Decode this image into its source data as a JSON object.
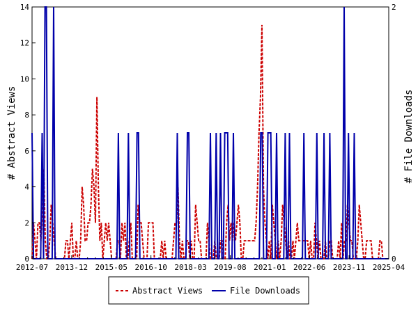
{
  "chart_data": {
    "type": "line",
    "title": "",
    "ylabel_left": "# Abstract Views",
    "ylabel_right": "# File Downloads",
    "ylim_left": [
      0,
      14
    ],
    "ylim_right": [
      0,
      2
    ],
    "y_ticks_left": [
      "0",
      "2",
      "4",
      "6",
      "8",
      "10",
      "12",
      "14"
    ],
    "y_ticks_right": [
      "0",
      "2"
    ],
    "x_tick_labels": [
      "2012-07",
      "2013-12",
      "2015-05",
      "2016-10",
      "2018-03",
      "2019-08",
      "2021-01",
      "2022-06",
      "2023-11",
      "2025-04"
    ],
    "grid": false,
    "legend_position": "bottom-center",
    "colors": {
      "abstract_views": "#cc0000",
      "file_downloads": "#0000aa"
    },
    "series": [
      {
        "name": "Abstract Views",
        "axis": "left",
        "style": "dashed",
        "color": "#cc0000",
        "values": [
          0,
          2,
          1,
          0,
          2,
          2,
          1,
          3,
          5,
          1,
          0,
          0,
          1,
          3,
          2,
          1,
          0,
          0,
          0,
          0,
          0,
          0,
          0,
          1,
          1,
          0,
          1,
          2,
          0,
          0,
          1,
          0,
          0,
          1,
          4,
          3,
          1,
          1,
          2,
          2,
          3,
          5,
          4,
          2,
          9,
          4,
          1,
          2,
          0,
          1,
          2,
          1,
          2,
          1,
          0,
          0,
          0,
          0,
          1,
          1,
          0,
          2,
          1,
          2,
          0,
          0,
          1,
          2,
          0,
          0,
          0,
          0,
          3,
          2,
          2,
          1,
          0,
          0,
          0,
          2,
          2,
          2,
          2,
          0,
          0,
          0,
          0,
          0,
          1,
          0,
          1,
          0,
          0,
          0,
          0,
          0,
          1,
          2,
          2,
          4,
          1,
          0,
          1,
          0,
          0,
          1,
          1,
          0,
          1,
          0,
          0,
          3,
          2,
          1,
          1,
          0,
          0,
          0,
          0,
          2,
          1,
          0,
          0,
          0,
          1,
          0,
          0,
          0,
          1,
          1,
          0,
          0,
          2,
          3,
          1,
          2,
          1,
          2,
          1,
          2,
          3,
          2,
          0,
          0,
          1,
          1,
          1,
          1,
          1,
          1,
          1,
          1,
          2,
          4,
          7,
          9,
          13,
          4,
          2,
          1,
          0,
          1,
          0,
          3,
          2,
          1,
          0,
          1,
          0,
          1,
          3,
          2,
          1,
          0,
          1,
          0,
          0,
          1,
          0,
          1,
          2,
          1,
          1,
          1,
          1,
          1,
          1,
          1,
          0,
          1,
          0,
          0,
          2,
          1,
          0,
          1,
          0,
          0,
          0,
          1,
          0,
          0,
          1,
          1,
          0,
          0,
          0,
          0,
          1,
          0,
          2,
          0,
          1,
          1,
          3,
          2,
          1,
          1,
          0,
          0,
          0,
          1,
          3,
          2,
          1,
          0,
          0,
          1,
          1,
          1,
          1,
          0,
          0,
          0,
          0,
          0,
          1,
          1,
          0,
          0,
          0,
          0,
          0
        ]
      },
      {
        "name": "File Downloads",
        "axis": "right",
        "style": "solid",
        "color": "#0000aa",
        "values": [
          1,
          0,
          0,
          0,
          0,
          0,
          0,
          1,
          0,
          2,
          2,
          0,
          0,
          0,
          0,
          2,
          0,
          0,
          0,
          0,
          0,
          0,
          0,
          0,
          0,
          0,
          0,
          0,
          0,
          0,
          0,
          0,
          0,
          0,
          0,
          0,
          0,
          0,
          0,
          0,
          0,
          0,
          0,
          0,
          0,
          0,
          0,
          0,
          0,
          0,
          0,
          0,
          0,
          0,
          0,
          0,
          0,
          0,
          0,
          0,
          1,
          0,
          0,
          0,
          0,
          0,
          0,
          1,
          0,
          0,
          0,
          0,
          0,
          1,
          1,
          0,
          0,
          0,
          0,
          0,
          0,
          0,
          0,
          0,
          0,
          0,
          0,
          0,
          0,
          0,
          0,
          0,
          0,
          0,
          0,
          0,
          0,
          0,
          0,
          0,
          0,
          1,
          0,
          0,
          0,
          0,
          0,
          0,
          1,
          1,
          0,
          0,
          0,
          0,
          0,
          0,
          0,
          0,
          0,
          0,
          0,
          0,
          0,
          0,
          1,
          0,
          0,
          0,
          1,
          0,
          0,
          1,
          0,
          0,
          1,
          1,
          1,
          0,
          0,
          0,
          1,
          0,
          0,
          0,
          0,
          0,
          0,
          0,
          0,
          0,
          0,
          0,
          0,
          0,
          0,
          0,
          0,
          0,
          0,
          1,
          1,
          0,
          0,
          0,
          1,
          1,
          1,
          0,
          0,
          0,
          1,
          0,
          0,
          0,
          0,
          0,
          1,
          0,
          0,
          1,
          0,
          0,
          0,
          0,
          0,
          0,
          0,
          0,
          0,
          1,
          0,
          0,
          0,
          0,
          0,
          0,
          0,
          0,
          1,
          0,
          0,
          0,
          0,
          1,
          0,
          0,
          0,
          1,
          0,
          0,
          0,
          0,
          0,
          0,
          0,
          0,
          0,
          2,
          0,
          0,
          1,
          0,
          0,
          0,
          1,
          0,
          0,
          0,
          0,
          0,
          0,
          0,
          0,
          0,
          0,
          0,
          0,
          0,
          0,
          0,
          0,
          0,
          0,
          0,
          0,
          0,
          0,
          0,
          0
        ]
      }
    ],
    "legend": [
      "Abstract Views",
      "File Downloads"
    ]
  }
}
